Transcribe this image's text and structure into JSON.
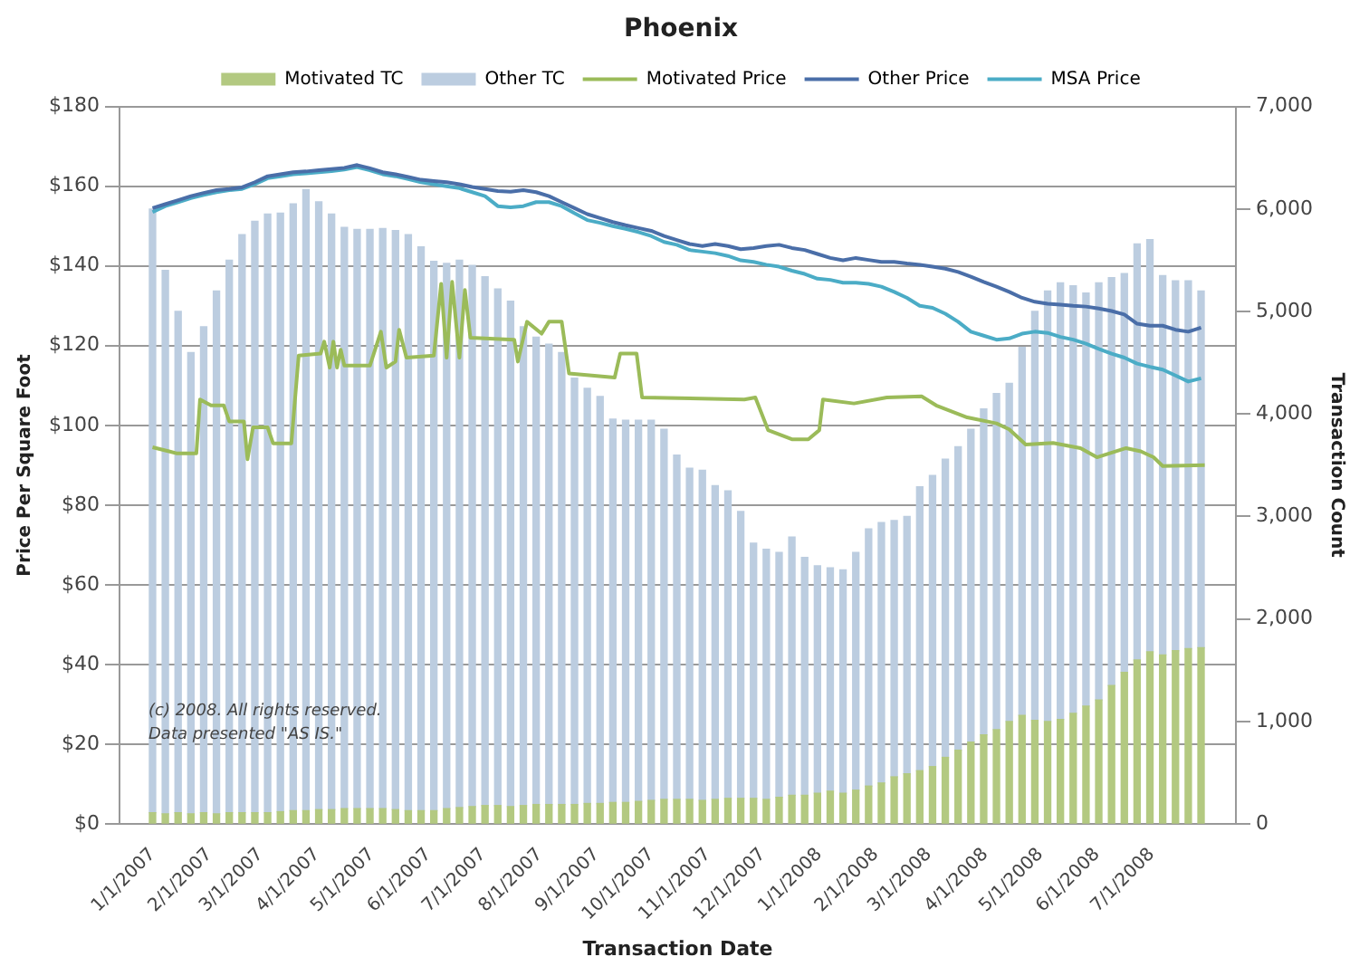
{
  "chart_data": {
    "type": "bar",
    "title": "Phoenix",
    "xlabel": "Transaction Date",
    "ylabel": "Price Per Square Foot",
    "y2label": "Transaction Count",
    "stacked": true,
    "grid": "y",
    "legend": "top",
    "marker": "none",
    "line_style": "solid",
    "annotations": [
      "(c) 2008. All rights reserved.",
      "Data presented \"AS IS.\""
    ],
    "xlim": [
      "2006-12-30",
      "2008-07-31"
    ],
    "xticks": [
      {
        "value": "2007-01-01",
        "label": "1/1/2007"
      },
      {
        "value": "2007-02-01",
        "label": "2/1/2007"
      },
      {
        "value": "2007-03-01",
        "label": "3/1/2007"
      },
      {
        "value": "2007-04-01",
        "label": "4/1/2007"
      },
      {
        "value": "2007-05-01",
        "label": "5/1/2007"
      },
      {
        "value": "2007-06-01",
        "label": "6/1/2007"
      },
      {
        "value": "2007-07-01",
        "label": "7/1/2007"
      },
      {
        "value": "2007-08-01",
        "label": "8/1/2007"
      },
      {
        "value": "2007-09-01",
        "label": "9/1/2007"
      },
      {
        "value": "2007-10-01",
        "label": "10/1/2007"
      },
      {
        "value": "2007-11-01",
        "label": "11/1/2007"
      },
      {
        "value": "2007-12-01",
        "label": "12/1/2007"
      },
      {
        "value": "2008-01-01",
        "label": "1/1/2008"
      },
      {
        "value": "2008-02-01",
        "label": "2/1/2008"
      },
      {
        "value": "2008-03-01",
        "label": "3/1/2008"
      },
      {
        "value": "2008-04-01",
        "label": "4/1/2008"
      },
      {
        "value": "2008-05-01",
        "label": "5/1/2008"
      },
      {
        "value": "2008-06-01",
        "label": "6/1/2008"
      },
      {
        "value": "2008-07-01",
        "label": "7/1/2008"
      }
    ],
    "ylim": [
      0,
      180
    ],
    "yticks": [
      {
        "value": 0,
        "label": "$0"
      },
      {
        "value": 20,
        "label": "$20"
      },
      {
        "value": 40,
        "label": "$40"
      },
      {
        "value": 60,
        "label": "$60"
      },
      {
        "value": 80,
        "label": "$80"
      },
      {
        "value": 100,
        "label": "$100"
      },
      {
        "value": 120,
        "label": "$120"
      },
      {
        "value": 140,
        "label": "$140"
      },
      {
        "value": 160,
        "label": "$160"
      },
      {
        "value": 180,
        "label": "$180"
      }
    ],
    "y2lim": [
      0,
      7000
    ],
    "y2ticks": [
      0,
      {
        "value": 1000,
        "label": "1,000"
      },
      {
        "value": 2000,
        "label": "2,000"
      },
      {
        "value": 3000,
        "label": "3,000"
      },
      {
        "value": 4000,
        "label": "4,000"
      },
      {
        "value": 5000,
        "label": "5,000"
      },
      {
        "value": 6000,
        "label": "6,000"
      },
      {
        "value": 7000,
        "label": "7,000"
      }
    ],
    "x": [
      "2007-01-01",
      "2007-01-08",
      "2007-01-15",
      "2007-01-22",
      "2007-01-29",
      "2007-02-05",
      "2007-02-12",
      "2007-02-19",
      "2007-02-26",
      "2007-03-05",
      "2007-03-12",
      "2007-03-19",
      "2007-03-26",
      "2007-04-02",
      "2007-04-09",
      "2007-04-16",
      "2007-04-23",
      "2007-04-30",
      "2007-05-07",
      "2007-05-14",
      "2007-05-21",
      "2007-05-28",
      "2007-06-04",
      "2007-06-11",
      "2007-06-18",
      "2007-06-25",
      "2007-07-02",
      "2007-07-09",
      "2007-07-16",
      "2007-07-23",
      "2007-07-30",
      "2007-08-06",
      "2007-08-13",
      "2007-08-20",
      "2007-08-27",
      "2007-09-03",
      "2007-09-10",
      "2007-09-17",
      "2007-09-24",
      "2007-10-01",
      "2007-10-08",
      "2007-10-15",
      "2007-10-22",
      "2007-10-29",
      "2007-11-05",
      "2007-11-12",
      "2007-11-19",
      "2007-11-26",
      "2007-12-03",
      "2007-12-10",
      "2007-12-17",
      "2007-12-24",
      "2007-12-31",
      "2008-01-07",
      "2008-01-14",
      "2008-01-21",
      "2008-01-28",
      "2008-02-04",
      "2008-02-11",
      "2008-02-18",
      "2008-02-25",
      "2008-03-03",
      "2008-03-10",
      "2008-03-17",
      "2008-03-24",
      "2008-03-31",
      "2008-04-07",
      "2008-04-14",
      "2008-04-21",
      "2008-04-28",
      "2008-05-05",
      "2008-05-12",
      "2008-05-19",
      "2008-05-26",
      "2008-06-02",
      "2008-06-09",
      "2008-06-16",
      "2008-06-23",
      "2008-06-30",
      "2008-07-07",
      "2008-07-14",
      "2008-07-21",
      "2008-07-28"
    ],
    "series": [
      {
        "name": "Motivated TC",
        "axis": "y2",
        "color": "#b3c981",
        "values": [
          110,
          100,
          110,
          100,
          110,
          100,
          110,
          110,
          110,
          110,
          120,
          130,
          130,
          140,
          140,
          150,
          150,
          150,
          150,
          140,
          130,
          130,
          130,
          150,
          160,
          170,
          180,
          180,
          170,
          180,
          190,
          190,
          190,
          190,
          200,
          200,
          210,
          210,
          220,
          230,
          240,
          240,
          240,
          230,
          240,
          250,
          250,
          250,
          240,
          260,
          280,
          280,
          300,
          320,
          300,
          330,
          370,
          400,
          460,
          490,
          520,
          560,
          650,
          720,
          800,
          870,
          920,
          1000,
          1060,
          1010,
          1000,
          1020,
          1080,
          1150,
          1210,
          1350,
          1480,
          1600,
          1680,
          1650,
          1690,
          1710,
          1720
        ]
      },
      {
        "name": "Other TC",
        "axis": "y2",
        "color": "#bccde0",
        "values": [
          5890,
          5300,
          4890,
          4500,
          4740,
          5100,
          5390,
          5640,
          5770,
          5840,
          5840,
          5920,
          6060,
          5930,
          5810,
          5670,
          5650,
          5650,
          5660,
          5650,
          5620,
          5500,
          5360,
          5320,
          5340,
          5280,
          5160,
          5040,
          4930,
          4670,
          4560,
          4490,
          4410,
          4160,
          4050,
          3970,
          3740,
          3730,
          3720,
          3710,
          3610,
          3360,
          3230,
          3220,
          3060,
          3000,
          2800,
          2490,
          2440,
          2390,
          2520,
          2320,
          2220,
          2180,
          2180,
          2320,
          2510,
          2540,
          2500,
          2510,
          2770,
          2840,
          2910,
          2960,
          3050,
          3180,
          3280,
          3300,
          3590,
          3990,
          4200,
          4260,
          4170,
          4030,
          4070,
          3980,
          3890,
          4060,
          4020,
          3700,
          3610,
          3590,
          3480
        ]
      },
      {
        "name": "Motivated Price",
        "type": "line",
        "color": "#9bbb59",
        "x": [
          "2007-01-01",
          "2007-01-10",
          "2007-01-14",
          "2007-01-25",
          "2007-01-27",
          "2007-02-02",
          "2007-02-09",
          "2007-02-12",
          "2007-02-20",
          "2007-02-22",
          "2007-02-25",
          "2007-03-05",
          "2007-03-08",
          "2007-03-18",
          "2007-03-22",
          "2007-04-03",
          "2007-04-05",
          "2007-04-08",
          "2007-04-10",
          "2007-04-12",
          "2007-04-14",
          "2007-04-16",
          "2007-04-30",
          "2007-05-06",
          "2007-05-09",
          "2007-05-14",
          "2007-05-16",
          "2007-05-20",
          "2007-06-04",
          "2007-06-08",
          "2007-06-11",
          "2007-06-14",
          "2007-06-18",
          "2007-06-21",
          "2007-06-24",
          "2007-07-18",
          "2007-07-20",
          "2007-07-25",
          "2007-08-02",
          "2007-08-06",
          "2007-08-13",
          "2007-08-17",
          "2007-09-11",
          "2007-09-14",
          "2007-09-23",
          "2007-09-26",
          "2007-11-21",
          "2007-11-27",
          "2007-12-04",
          "2007-12-17",
          "2007-12-26",
          "2008-01-01",
          "2008-01-03",
          "2008-01-20",
          "2008-02-07",
          "2008-02-26",
          "2008-03-05",
          "2008-03-22",
          "2008-04-07",
          "2008-04-14",
          "2008-04-23",
          "2008-05-08",
          "2008-05-23",
          "2008-06-01",
          "2008-06-17",
          "2008-06-25",
          "2008-07-02",
          "2008-07-07",
          "2008-07-30"
        ],
        "values": [
          94.5,
          93.5,
          93,
          93,
          106.5,
          105,
          105,
          101,
          101,
          91.5,
          99.5,
          99.5,
          95.5,
          95.5,
          117.5,
          118,
          121,
          114.5,
          121,
          114.5,
          119,
          115,
          115,
          123.5,
          114.5,
          116,
          124,
          117,
          117.5,
          135.5,
          117,
          136,
          117,
          134,
          122,
          121.5,
          116,
          126,
          123,
          126,
          126,
          113,
          112,
          118,
          118,
          107,
          106.5,
          107,
          98.8,
          96.5,
          96.5,
          98.8,
          106.5,
          105.5,
          107,
          107.3,
          105,
          102,
          100.5,
          99,
          95.2,
          95.6,
          94.3,
          92,
          94.3,
          93.5,
          92,
          89.8,
          90
        ]
      },
      {
        "name": "Other Price",
        "type": "line",
        "color": "#4a6ea8",
        "values": [
          154.5,
          155.5,
          156.5,
          157.5,
          158.3,
          159,
          159.3,
          159.7,
          161,
          162.5,
          163,
          163.5,
          163.7,
          164,
          164.3,
          164.6,
          165.3,
          164.5,
          163.5,
          163,
          162.3,
          161.6,
          161.3,
          161,
          160.5,
          159.8,
          159.3,
          158.8,
          158.6,
          159,
          158.5,
          157.5,
          156,
          154.5,
          153,
          152,
          151,
          150.2,
          149.5,
          148.8,
          147.5,
          146.5,
          145.5,
          145,
          145.5,
          145,
          144.2,
          144.5,
          145,
          145.3,
          144.5,
          144,
          143,
          142,
          141.4,
          142,
          141.5,
          141,
          141,
          140.6,
          140.3,
          139.8,
          139.3,
          138.5,
          137.3,
          136,
          134.8,
          133.5,
          132,
          131,
          130.5,
          130.3,
          130,
          129.8,
          129.3,
          128.7,
          127.8,
          125.5,
          125,
          125,
          124,
          123.5,
          124.5
        ]
      },
      {
        "name": "MSA Price",
        "type": "line",
        "color": "#4bacc6",
        "values": [
          153.5,
          155,
          156,
          157,
          157.8,
          158.5,
          159,
          159.3,
          160.5,
          162,
          162.5,
          163,
          163.2,
          163.5,
          163.8,
          164.2,
          164.8,
          164,
          163,
          162.5,
          161.8,
          161,
          160.5,
          160,
          159.5,
          158.5,
          157.5,
          155,
          154.7,
          155,
          156,
          156,
          155,
          153.2,
          151.5,
          150.8,
          150,
          149.3,
          148.5,
          147.5,
          146,
          145.3,
          144,
          143.6,
          143.2,
          142.5,
          141.4,
          141,
          140.3,
          139.8,
          138.8,
          138,
          136.8,
          136.5,
          135.8,
          135.8,
          135.5,
          134.8,
          133.5,
          132,
          130,
          129.5,
          128,
          126,
          123.5,
          122.5,
          121.5,
          121.8,
          123,
          123.5,
          123.2,
          122.2,
          121.5,
          120.5,
          119.2,
          118,
          117,
          115.5,
          114.7,
          114,
          112.5,
          111,
          111.8
        ]
      }
    ]
  }
}
